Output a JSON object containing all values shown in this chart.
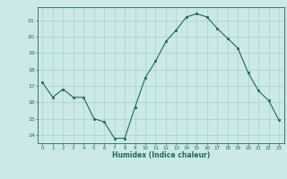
{
  "x": [
    0,
    1,
    2,
    3,
    4,
    5,
    6,
    7,
    8,
    9,
    10,
    11,
    12,
    13,
    14,
    15,
    16,
    17,
    18,
    19,
    20,
    21,
    22,
    23
  ],
  "y": [
    17.2,
    16.3,
    16.8,
    16.3,
    16.3,
    15.0,
    14.8,
    13.8,
    13.8,
    15.7,
    17.5,
    18.5,
    19.7,
    20.4,
    21.2,
    21.4,
    21.2,
    20.5,
    19.9,
    19.3,
    17.8,
    16.7,
    16.1,
    14.9
  ],
  "xlabel": "Humidex (Indice chaleur)",
  "ylim": [
    13.5,
    21.8
  ],
  "xlim": [
    -0.5,
    23.5
  ],
  "yticks": [
    14,
    15,
    16,
    17,
    18,
    19,
    20,
    21
  ],
  "xticks": [
    0,
    1,
    2,
    3,
    4,
    5,
    6,
    7,
    8,
    9,
    10,
    11,
    12,
    13,
    14,
    15,
    16,
    17,
    18,
    19,
    20,
    21,
    22,
    23
  ],
  "line_color": "#1a6b5a",
  "marker_color": "#1a6b5a",
  "bg_color": "#cce8e8",
  "grid_color": "#99cccc",
  "axes_color": "#1a6b5a",
  "xlabel_color": "#1a6b5a",
  "tick_color": "#1a6b5a"
}
